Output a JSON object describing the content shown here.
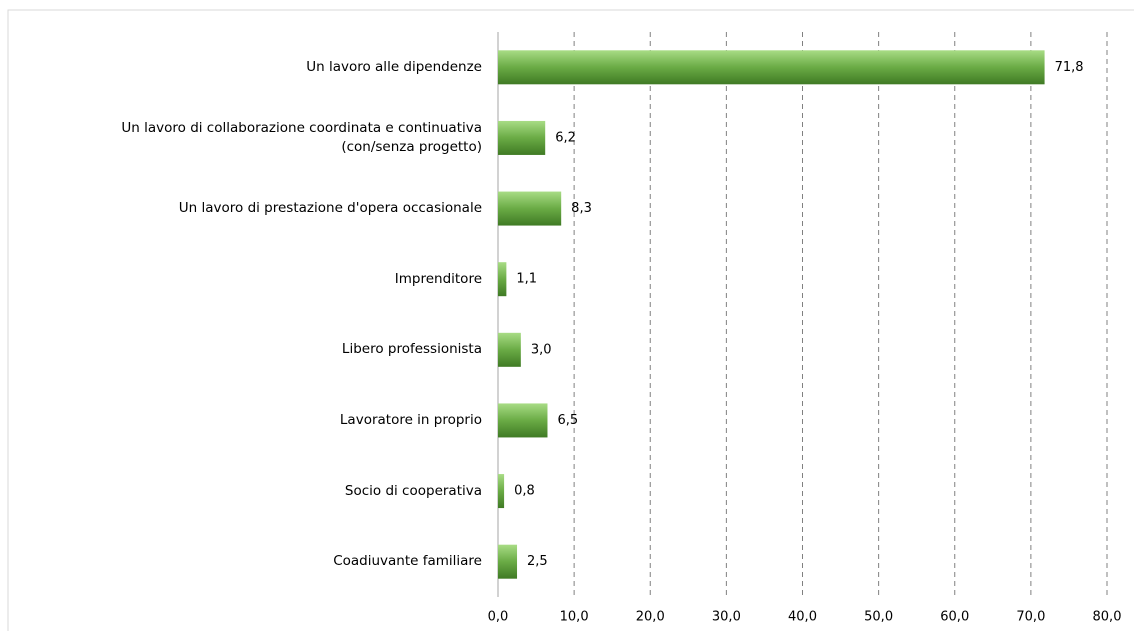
{
  "chart_data": {
    "type": "hbar",
    "categories": [
      "Un lavoro alle dipendenze",
      "Un lavoro di collaborazione coordinata e continuativa\n(con/senza progetto)",
      "Un lavoro di prestazione d'opera occasionale",
      "Imprenditore",
      "Libero professionista",
      "Lavoratore in proprio",
      "Socio di cooperativa",
      "Coadiuvante familiare"
    ],
    "values": [
      71.8,
      6.2,
      8.3,
      1.1,
      3.0,
      6.5,
      0.8,
      2.5
    ],
    "value_labels": [
      "71,8",
      "6,2",
      "8,3",
      "1,1",
      "3,0",
      "6,5",
      "0,8",
      "2,5"
    ],
    "color": "#6aab45",
    "xlim": [
      0,
      80
    ],
    "xticks": [
      {
        "value": 0,
        "label": "0,0"
      },
      {
        "value": 10,
        "label": "10,0"
      },
      {
        "value": 20,
        "label": "20,0"
      },
      {
        "value": 30,
        "label": "30,0"
      },
      {
        "value": 40,
        "label": "40,0"
      },
      {
        "value": 50,
        "label": "50,0"
      },
      {
        "value": 60,
        "label": "60,0"
      },
      {
        "value": 70,
        "label": "70,0"
      },
      {
        "value": 80,
        "label": "80,0"
      }
    ],
    "grid": true
  }
}
